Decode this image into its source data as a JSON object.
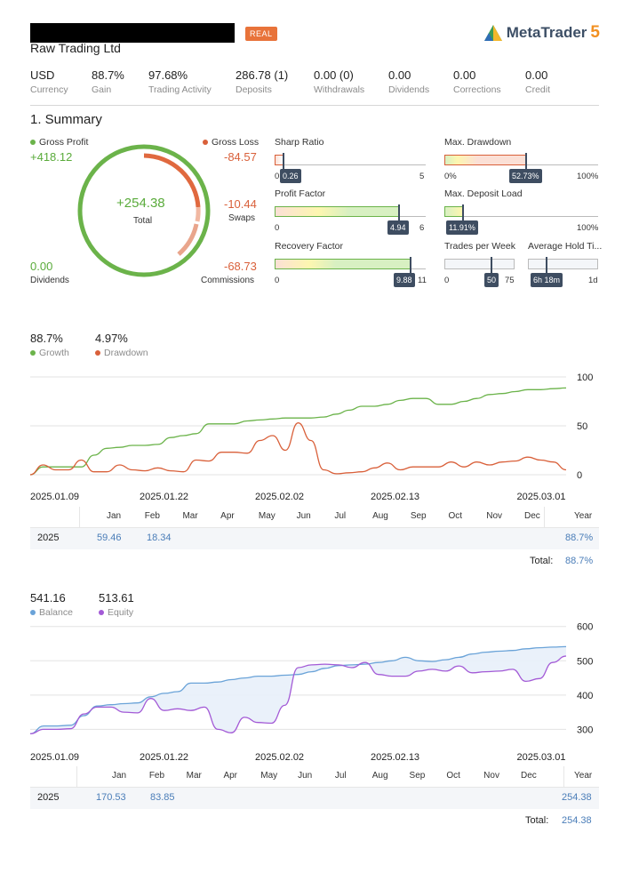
{
  "header": {
    "badge": "REAL",
    "logo_text": "MetaTrader",
    "logo_version": "5",
    "broker": "Raw Trading Ltd"
  },
  "stats": [
    {
      "value": "USD",
      "label": "Currency"
    },
    {
      "value": "88.7%",
      "label": "Gain"
    },
    {
      "value": "97.68%",
      "label": "Trading Activity"
    },
    {
      "value": "286.78 (1)",
      "label": "Deposits"
    },
    {
      "value": "0.00 (0)",
      "label": "Withdrawals"
    },
    {
      "value": "0.00",
      "label": "Dividends"
    },
    {
      "value": "0.00",
      "label": "Corrections"
    },
    {
      "value": "0.00",
      "label": "Credit"
    }
  ],
  "summary": {
    "title": "1. Summary",
    "gross_profit_label": "Gross Profit",
    "gross_profit": "+418.12",
    "gross_loss_label": "Gross Loss",
    "gross_loss": "-84.57",
    "total_value": "+254.38",
    "total_label": "Total",
    "swaps_value": "-10.44",
    "swaps_label": "Swaps",
    "dividends_value": "0.00",
    "dividends_label": "Dividends",
    "commissions_value": "-68.73",
    "commissions_label": "Commissions",
    "metrics": {
      "sharp": {
        "label": "Sharp Ratio",
        "min": "0",
        "max": "5",
        "value": "0.26",
        "fraction": 0.052
      },
      "drawdown": {
        "label": "Max. Drawdown",
        "min": "0%",
        "max": "100%",
        "value": "52.73%",
        "fraction": 0.5273
      },
      "profit_factor": {
        "label": "Profit Factor",
        "min": "0",
        "max": "6",
        "value": "4.94",
        "fraction": 0.823
      },
      "deposit_load": {
        "label": "Max. Deposit Load",
        "min": "0%",
        "max": "100%",
        "value": "11.91%",
        "fraction": 0.1191
      },
      "recovery": {
        "label": "Recovery Factor",
        "min": "0",
        "max": "11",
        "value": "9.88",
        "fraction": 0.898
      },
      "trades_week": {
        "label": "Trades per Week",
        "min": "0",
        "max": "75",
        "value": "50",
        "fraction": 0.667
      },
      "hold_time": {
        "label": "Average Hold Ti...",
        "min": "0",
        "max": "1d",
        "value": "6h 18m",
        "fraction": 0.2625
      }
    }
  },
  "growth": {
    "growth_value": "88.7%",
    "growth_label": "Growth",
    "drawdown_value": "4.97%",
    "drawdown_label": "Drawdown",
    "months": [
      "Jan",
      "Feb",
      "Mar",
      "Apr",
      "May",
      "Jun",
      "Jul",
      "Aug",
      "Sep",
      "Oct",
      "Nov",
      "Dec"
    ],
    "year_label": "Year",
    "row": {
      "year": "2025",
      "jan": "59.46",
      "feb": "18.34",
      "total_year": "88.7%"
    },
    "total_label": "Total:",
    "total_value": "88.7%"
  },
  "balance": {
    "balance_value": "541.16",
    "balance_label": "Balance",
    "equity_value": "513.61",
    "equity_label": "Equity",
    "months": [
      "Jan",
      "Feb",
      "Mar",
      "Apr",
      "May",
      "Jun",
      "Jul",
      "Aug",
      "Sep",
      "Oct",
      "Nov",
      "Dec"
    ],
    "year_label": "Year",
    "row": {
      "year": "2025",
      "jan": "170.53",
      "feb": "83.85",
      "total_year": "254.38"
    },
    "total_label": "Total:",
    "total_value": "254.38"
  },
  "chart_data": [
    {
      "type": "line",
      "title": "",
      "x_labels": [
        "2025.01.09",
        "2025.01.22",
        "2025.02.02",
        "2025.02.13",
        "2025.03.01"
      ],
      "yticks": [
        0,
        50,
        100
      ],
      "ylim": [
        0,
        100
      ],
      "series": [
        {
          "name": "Growth",
          "color": "#6bb34a",
          "values": [
            0,
            8,
            8,
            8,
            8,
            20,
            27,
            28,
            30,
            30,
            31,
            38,
            40,
            42,
            52,
            52,
            52,
            55,
            56,
            57,
            58,
            58,
            58,
            59,
            62,
            66,
            70,
            70,
            72,
            76,
            78,
            78,
            72,
            72,
            75,
            78,
            82,
            83,
            85,
            87,
            87,
            88,
            88.7
          ]
        },
        {
          "name": "Drawdown",
          "color": "#d9603a",
          "values": [
            0,
            10,
            5,
            5,
            15,
            3,
            3,
            10,
            5,
            4,
            7,
            4,
            3,
            15,
            14,
            23,
            23,
            22,
            35,
            40,
            25,
            53,
            35,
            5,
            1,
            2,
            3,
            7,
            12,
            5,
            8,
            8,
            8,
            13,
            8,
            13,
            10,
            13,
            14,
            18,
            15,
            13,
            5
          ]
        }
      ]
    },
    {
      "type": "line",
      "title": "",
      "x_labels": [
        "2025.01.09",
        "2025.01.22",
        "2025.02.02",
        "2025.02.13",
        "2025.03.01"
      ],
      "yticks": [
        300,
        400,
        500,
        600
      ],
      "ylim": [
        270,
        620
      ],
      "series": [
        {
          "name": "Balance",
          "color": "#6aa3d8",
          "values": [
            287,
            310,
            310,
            312,
            340,
            368,
            372,
            375,
            377,
            395,
            405,
            410,
            435,
            435,
            438,
            445,
            450,
            455,
            455,
            458,
            460,
            468,
            478,
            486,
            488,
            490,
            495,
            500,
            510,
            500,
            498,
            503,
            510,
            520,
            525,
            528,
            530,
            535,
            538,
            540,
            541.16
          ]
        },
        {
          "name": "Equity",
          "color": "#a35ad6",
          "values": [
            287,
            300,
            300,
            302,
            345,
            365,
            365,
            350,
            348,
            390,
            355,
            360,
            355,
            365,
            300,
            290,
            335,
            320,
            318,
            370,
            480,
            488,
            490,
            488,
            480,
            495,
            460,
            455,
            455,
            470,
            475,
            470,
            485,
            465,
            468,
            470,
            475,
            440,
            448,
            495,
            513.61
          ]
        }
      ]
    }
  ]
}
